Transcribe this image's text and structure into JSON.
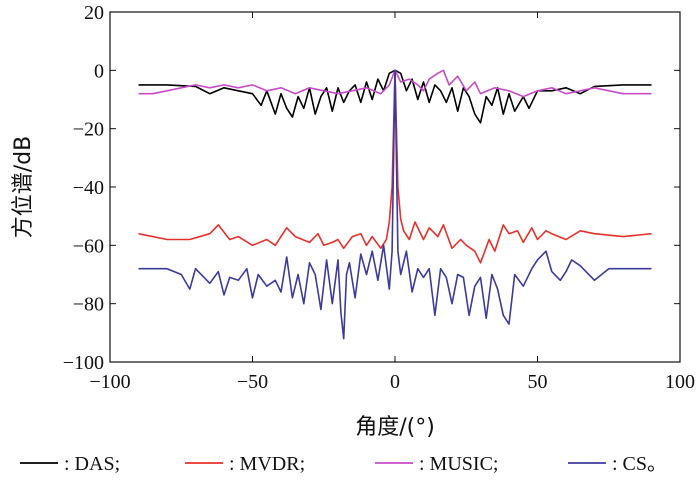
{
  "chart_data": {
    "type": "line",
    "xlabel": "角度/(°)",
    "ylabel": "方位谱/dB",
    "xlim": [
      -100,
      100
    ],
    "ylim": [
      -100,
      20
    ],
    "xticks": [
      -100,
      -50,
      0,
      50,
      100
    ],
    "yticks": [
      20,
      0,
      -20,
      -40,
      -60,
      -80,
      -100
    ],
    "xtick_labels": [
      "−100",
      "−50",
      "0",
      "50",
      "100"
    ],
    "ytick_labels": [
      "20",
      "0",
      "−20",
      "−40",
      "−60",
      "−80",
      "−100"
    ],
    "grid": false,
    "legend_position": "bottom",
    "legend_suffix": "。",
    "series": [
      {
        "name": "DAS",
        "color": "#000000",
        "x": [
          -90,
          -80,
          -70,
          -65,
          -60,
          -55,
          -50,
          -47,
          -45,
          -42,
          -40,
          -38,
          -36,
          -34,
          -32,
          -30,
          -28,
          -26,
          -24,
          -22,
          -20,
          -18,
          -16,
          -14,
          -12,
          -10,
          -8,
          -6,
          -4,
          -2,
          0,
          2,
          4,
          6,
          8,
          10,
          12,
          14,
          16,
          18,
          20,
          22,
          24,
          26,
          28,
          30,
          32,
          34,
          36,
          38,
          40,
          42,
          45,
          47,
          50,
          55,
          60,
          65,
          70,
          80,
          90
        ],
        "y": [
          -5,
          -5,
          -5.5,
          -8,
          -6,
          -7,
          -8,
          -12,
          -7,
          -15,
          -8,
          -13,
          -16,
          -9,
          -13,
          -6,
          -15,
          -9,
          -6,
          -14,
          -6,
          -11,
          -7,
          -5,
          -11,
          -4,
          -10,
          -3,
          -7,
          -1,
          0,
          -1,
          -7,
          -3,
          -10,
          -4,
          -11,
          -5,
          -7,
          -11,
          -6,
          -14,
          -6,
          -9,
          -15,
          -18,
          -9,
          -12,
          -6,
          -15,
          -8,
          -14,
          -9,
          -13,
          -7,
          -7,
          -6,
          -8,
          -5.5,
          -5,
          -5
        ]
      },
      {
        "name": "MVDR",
        "color": "#e8302a",
        "x": [
          -90,
          -80,
          -72,
          -65,
          -62,
          -58,
          -55,
          -50,
          -45,
          -42,
          -38,
          -35,
          -30,
          -27,
          -25,
          -22,
          -20,
          -18,
          -15,
          -12,
          -10,
          -8,
          -5,
          -3,
          -2,
          -1,
          0,
          1,
          2,
          3,
          5,
          7,
          10,
          12,
          15,
          17,
          20,
          23,
          25,
          28,
          30,
          33,
          35,
          38,
          40,
          43,
          45,
          48,
          50,
          53,
          55,
          60,
          65,
          70,
          80,
          90
        ],
        "y": [
          -56,
          -58,
          -58,
          -56,
          -53,
          -58,
          -57,
          -60,
          -58,
          -60,
          -54,
          -57,
          -59,
          -56,
          -60,
          -59,
          -58,
          -61,
          -57,
          -56,
          -60,
          -57,
          -61,
          -58,
          -52,
          -40,
          0,
          -40,
          -51,
          -55,
          -58,
          -52,
          -58,
          -54,
          -57,
          -53,
          -61,
          -58,
          -60,
          -62,
          -66,
          -58,
          -62,
          -53,
          -56,
          -55,
          -59,
          -54,
          -58,
          -55,
          -56,
          -58,
          -55,
          -56,
          -57,
          -56
        ]
      },
      {
        "name": "MUSIC",
        "color": "#c84cc8",
        "x": [
          -90,
          -85,
          -80,
          -75,
          -70,
          -65,
          -60,
          -55,
          -50,
          -45,
          -40,
          -35,
          -30,
          -25,
          -20,
          -15,
          -10,
          -5,
          -2,
          0,
          2,
          5,
          8,
          10,
          12,
          15,
          17,
          19,
          22,
          25,
          28,
          30,
          35,
          40,
          45,
          50,
          55,
          60,
          65,
          70,
          80,
          90
        ],
        "y": [
          -8,
          -8,
          -7,
          -6,
          -5,
          -6,
          -5,
          -6,
          -5,
          -7,
          -6,
          -8,
          -6,
          -7,
          -8,
          -7,
          -6,
          -8,
          -5,
          0,
          -4,
          -3,
          -5,
          -7,
          -3,
          -1,
          0,
          -5,
          -2,
          -7,
          -4,
          -8,
          -6,
          -7,
          -9,
          -7,
          -6,
          -8,
          -7,
          -6,
          -8,
          -8
        ]
      },
      {
        "name": "CS",
        "color": "#3b3b9b",
        "x": [
          -90,
          -80,
          -75,
          -72,
          -70,
          -67,
          -65,
          -62,
          -60,
          -58,
          -55,
          -52,
          -50,
          -48,
          -45,
          -42,
          -40,
          -38,
          -36,
          -34,
          -32,
          -30,
          -28,
          -26,
          -24,
          -22,
          -20,
          -19,
          -18,
          -17,
          -16,
          -14,
          -12,
          -10,
          -8,
          -6,
          -4,
          -2,
          -1,
          0,
          1,
          2,
          4,
          6,
          8,
          10,
          12,
          14,
          16,
          18,
          20,
          22,
          24,
          26,
          28,
          30,
          32,
          34,
          36,
          38,
          40,
          42,
          45,
          48,
          50,
          53,
          55,
          58,
          60,
          62,
          65,
          70,
          75,
          80,
          90
        ],
        "y": [
          -68,
          -68,
          -70,
          -75,
          -68,
          -71,
          -73,
          -69,
          -77,
          -71,
          -72,
          -68,
          -78,
          -70,
          -74,
          -72,
          -76,
          -64,
          -78,
          -70,
          -80,
          -66,
          -70,
          -82,
          -65,
          -80,
          -65,
          -83,
          -92,
          -70,
          -66,
          -78,
          -63,
          -70,
          -62,
          -72,
          -60,
          -75,
          -62,
          0,
          -62,
          -70,
          -62,
          -76,
          -68,
          -71,
          -68,
          -84,
          -68,
          -71,
          -80,
          -70,
          -71,
          -84,
          -74,
          -71,
          -85,
          -70,
          -75,
          -84,
          -87,
          -70,
          -74,
          -68,
          -65,
          -62,
          -69,
          -72,
          -69,
          -65,
          -67,
          -72,
          -68,
          -68,
          -68
        ]
      }
    ]
  }
}
